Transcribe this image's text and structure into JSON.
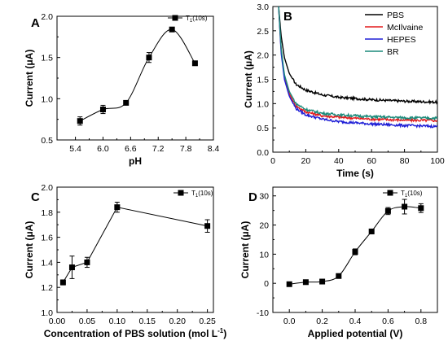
{
  "chart_data": [
    {
      "panel": "A",
      "type": "line",
      "xlabel": "pH",
      "ylabel": "Current (μA)",
      "xlim": [
        5.0,
        8.4
      ],
      "ylim": [
        0.5,
        2.0
      ],
      "xticks": [
        "5.4",
        "6.0",
        "6.6",
        "7.2",
        "7.8",
        "8.4"
      ],
      "yticks": [
        "0.5",
        "1.0",
        "1.5",
        "2.0"
      ],
      "legend_position": "top-right",
      "series": [
        {
          "name": "T",
          "name_sub": "1",
          "name_suffix": "(10s)",
          "color": "#000000",
          "marker": "square",
          "smooth": true,
          "x": [
            5.5,
            6.0,
            6.5,
            7.0,
            7.5,
            8.0
          ],
          "y": [
            0.73,
            0.87,
            0.95,
            1.5,
            1.84,
            1.43
          ],
          "err": [
            0.05,
            0.05,
            0.02,
            0.06,
            0.02,
            0.02
          ]
        }
      ]
    },
    {
      "panel": "B",
      "type": "line",
      "xlabel": "Time (s)",
      "ylabel": "Current (μA)",
      "xlim": [
        0,
        100
      ],
      "ylim": [
        0,
        3.0
      ],
      "xticks": [
        "0",
        "20",
        "40",
        "60",
        "80",
        "100"
      ],
      "yticks": [
        "0.0",
        "0.5",
        "1.0",
        "1.5",
        "2.0",
        "2.5",
        "3.0"
      ],
      "legend_position": "top-right",
      "series": [
        {
          "name": "PBS",
          "color": "#000000",
          "x": [
            3.5,
            5,
            7,
            10,
            14,
            20,
            30,
            40,
            60,
            80,
            100
          ],
          "y": [
            3.0,
            2.4,
            1.95,
            1.62,
            1.4,
            1.28,
            1.18,
            1.13,
            1.08,
            1.05,
            1.03
          ]
        },
        {
          "name": "McIlvaine",
          "color": "#e41a1c",
          "x": [
            3.5,
            5,
            7,
            10,
            14,
            20,
            30,
            40,
            60,
            80,
            100
          ],
          "y": [
            3.0,
            2.1,
            1.55,
            1.2,
            0.95,
            0.83,
            0.75,
            0.72,
            0.68,
            0.66,
            0.65
          ]
        },
        {
          "name": "HEPES",
          "color": "#1f1fd6",
          "x": [
            3.5,
            5,
            7,
            10,
            14,
            20,
            30,
            40,
            60,
            80,
            100
          ],
          "y": [
            3.0,
            2.05,
            1.5,
            1.15,
            0.9,
            0.77,
            0.68,
            0.63,
            0.58,
            0.55,
            0.53
          ]
        },
        {
          "name": "BR",
          "color": "#1a8a7a",
          "x": [
            3.5,
            5,
            7,
            10,
            14,
            20,
            30,
            40,
            60,
            80,
            100
          ],
          "y": [
            3.0,
            2.15,
            1.6,
            1.25,
            1.0,
            0.88,
            0.8,
            0.77,
            0.73,
            0.71,
            0.7
          ]
        }
      ]
    },
    {
      "panel": "C",
      "type": "line",
      "xlabel": "Concentration of PBS solution (mol L",
      "xlabel_sup": "-1",
      "xlabel_suffix": ")",
      "ylabel": "Current (μA)",
      "xlim": [
        0.0,
        0.26
      ],
      "ylim": [
        1.0,
        2.0
      ],
      "xticks": [
        "0.00",
        "0.05",
        "0.10",
        "0.15",
        "0.20",
        "0.25"
      ],
      "yticks": [
        "1.0",
        "1.2",
        "1.4",
        "1.6",
        "1.8",
        "2.0"
      ],
      "legend_position": "top-right",
      "series": [
        {
          "name": "T",
          "name_sub": "1",
          "name_suffix": "(10s)",
          "color": "#000000",
          "marker": "square",
          "smooth": false,
          "x": [
            0.01,
            0.025,
            0.05,
            0.1,
            0.25
          ],
          "y": [
            1.24,
            1.36,
            1.4,
            1.84,
            1.69
          ],
          "err": [
            0.02,
            0.09,
            0.04,
            0.04,
            0.05
          ]
        }
      ]
    },
    {
      "panel": "D",
      "type": "line",
      "xlabel": "Applied potential (V)",
      "ylabel": "Current (μA)",
      "xlim": [
        -0.1,
        0.9
      ],
      "ylim": [
        -10,
        33
      ],
      "xticks": [
        "0.0",
        "0.2",
        "0.4",
        "0.6",
        "0.8"
      ],
      "yticks": [
        "-10",
        "0",
        "10",
        "20",
        "30"
      ],
      "legend_position": "top-right",
      "series": [
        {
          "name": "T",
          "name_sub": "1",
          "name_suffix": "(10s)",
          "color": "#000000",
          "marker": "square",
          "smooth": true,
          "x": [
            0.0,
            0.1,
            0.2,
            0.3,
            0.4,
            0.5,
            0.6,
            0.7,
            0.8
          ],
          "y": [
            -0.3,
            0.4,
            0.6,
            2.5,
            10.8,
            17.8,
            24.8,
            26.3,
            25.8
          ],
          "err": [
            0.3,
            0.3,
            0.3,
            0.5,
            1.0,
            0.8,
            1.2,
            2.5,
            1.5
          ]
        }
      ]
    }
  ]
}
